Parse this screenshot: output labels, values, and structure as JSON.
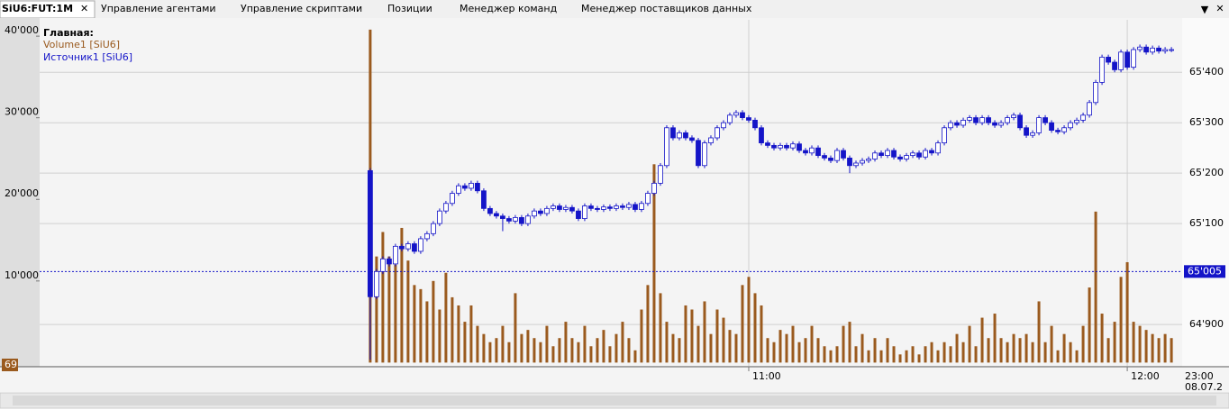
{
  "tabs": [
    {
      "label": "SiU6:FUT:1M"
    },
    {
      "label": "Управление агентами"
    },
    {
      "label": "Управление скриптами"
    },
    {
      "label": "Позиции"
    },
    {
      "label": "Менеджер команд"
    },
    {
      "label": "Менеджер поставщиков данных"
    }
  ],
  "chart_data": {
    "type": "candlestick",
    "legend_title": "Главная:",
    "x": [
      0,
      1,
      2,
      3,
      4,
      5,
      6,
      7,
      8,
      9,
      10,
      11,
      12,
      13,
      14,
      15,
      16,
      17,
      18,
      19,
      20,
      21,
      22,
      23,
      24,
      25,
      26,
      27,
      28,
      29,
      30,
      31,
      32,
      33,
      34,
      35,
      36,
      37,
      38,
      39,
      40,
      41,
      42,
      43,
      44,
      45,
      46,
      47,
      48,
      49,
      50,
      51,
      52,
      53,
      54,
      55,
      56,
      57,
      58,
      59,
      60,
      61,
      62,
      63,
      64,
      65,
      66,
      67,
      68,
      69,
      70,
      71,
      72,
      73,
      74,
      75,
      76,
      77,
      78,
      79,
      80,
      81,
      82,
      83,
      84,
      85,
      86,
      87,
      88,
      89,
      90,
      91,
      92,
      93,
      94,
      95,
      96,
      97,
      98,
      99,
      100,
      101,
      102,
      103,
      104,
      105,
      106,
      107,
      108,
      109,
      110,
      111,
      112,
      113,
      114,
      115,
      116,
      117,
      118,
      119,
      120,
      121,
      122,
      123,
      124,
      125,
      126,
      127
    ],
    "series": [
      {
        "name": "Volume1 [SiU6]",
        "type": "bar",
        "color": "#9a5a1e",
        "values": [
          40800,
          13000,
          16000,
          13000,
          12000,
          16500,
          12500,
          9500,
          9000,
          7500,
          10000,
          6500,
          11000,
          8000,
          7000,
          5000,
          7000,
          4500,
          3500,
          2500,
          3000,
          4500,
          2500,
          8500,
          3500,
          4000,
          3000,
          2500,
          4500,
          2000,
          3000,
          5000,
          3000,
          2500,
          4500,
          2000,
          3000,
          4000,
          2000,
          3500,
          5000,
          3000,
          1500,
          6500,
          9500,
          24300,
          8500,
          5000,
          3500,
          3000,
          7000,
          6500,
          4500,
          7500,
          3500,
          6500,
          5500,
          4000,
          3500,
          9500,
          10500,
          8500,
          7000,
          3000,
          2500,
          4000,
          3500,
          4500,
          2500,
          3000,
          4500,
          3000,
          2000,
          1500,
          2000,
          4500,
          5000,
          2000,
          3500,
          1500,
          3000,
          1500,
          3000,
          2000,
          1000,
          1500,
          2000,
          1000,
          2000,
          2500,
          1500,
          2500,
          2000,
          3500,
          2500,
          4500,
          2000,
          5500,
          3000,
          6000,
          3000,
          2500,
          3500,
          3000,
          3500,
          2500,
          7500,
          2500,
          4500,
          1500,
          3500,
          2500,
          1500,
          4500,
          9200,
          18500,
          6000,
          3000,
          5000,
          10500,
          12300,
          5000,
          4500,
          4000,
          3500,
          3000,
          3500,
          3000
        ]
      },
      {
        "name": "Источник1 [SiU6]",
        "type": "candlestick",
        "axis": "y2",
        "color": "#1414c8",
        "open": [
          65205,
          64955,
          65005,
          65030,
          65020,
          65055,
          65050,
          65060,
          65045,
          65070,
          65080,
          65100,
          65125,
          65140,
          65160,
          65175,
          65170,
          65180,
          65165,
          65130,
          65120,
          65115,
          65110,
          65105,
          65112,
          65100,
          65115,
          65125,
          65120,
          65130,
          65135,
          65128,
          65132,
          65125,
          65110,
          65135,
          65130,
          65128,
          65133,
          65130,
          65135,
          65132,
          65138,
          65128,
          65140,
          65160,
          65180,
          65215,
          65290,
          65270,
          65280,
          65270,
          65265,
          65215,
          65260,
          65270,
          65290,
          65300,
          65315,
          65320,
          65310,
          65305,
          65290,
          65260,
          65255,
          65250,
          65255,
          65250,
          65258,
          65245,
          65240,
          65250,
          65235,
          65230,
          65225,
          65245,
          65230,
          65215,
          65220,
          65225,
          65228,
          65240,
          65235,
          65245,
          65232,
          65228,
          65235,
          65240,
          65232,
          65245,
          65240,
          65260,
          65290,
          65300,
          65295,
          65305,
          65310,
          65300,
          65310,
          65300,
          65295,
          65300,
          65310,
          65315,
          65290,
          65275,
          65280,
          65310,
          65300,
          65285,
          65282,
          65290,
          65300,
          65305,
          65315,
          65340,
          65380,
          65430,
          65420,
          65405,
          65440,
          65410,
          65445,
          65450,
          65440,
          65448,
          65442,
          65445
        ],
        "high": [
          65210,
          65010,
          65035,
          65035,
          65060,
          65060,
          65065,
          65065,
          65075,
          65085,
          65105,
          65130,
          65145,
          65165,
          65180,
          65180,
          65185,
          65185,
          65170,
          65135,
          65125,
          65120,
          65115,
          65117,
          65117,
          65120,
          65130,
          65130,
          65135,
          65140,
          65140,
          65137,
          65137,
          65130,
          65140,
          65140,
          65135,
          65138,
          65138,
          65140,
          65140,
          65143,
          65143,
          65145,
          65165,
          65185,
          65220,
          65295,
          65295,
          65285,
          65285,
          65275,
          65270,
          65265,
          65275,
          65295,
          65305,
          65320,
          65325,
          65325,
          65315,
          65310,
          65295,
          65265,
          65260,
          65260,
          65260,
          65263,
          65263,
          65250,
          65255,
          65255,
          65240,
          65235,
          65250,
          65250,
          65235,
          65225,
          65230,
          65233,
          65245,
          65245,
          65250,
          65250,
          65237,
          65240,
          65245,
          65245,
          65250,
          65250,
          65265,
          65295,
          65305,
          65305,
          65310,
          65315,
          65315,
          65315,
          65315,
          65305,
          65305,
          65315,
          65320,
          65320,
          65295,
          65285,
          65315,
          65315,
          65305,
          65290,
          65295,
          65305,
          65310,
          65320,
          65345,
          65385,
          65435,
          65435,
          65425,
          65445,
          65445,
          65450,
          65455,
          65455,
          65453,
          65453,
          65450,
          65450
        ],
        "low": [
          64830,
          64950,
          65000,
          65015,
          65015,
          65045,
          65045,
          65040,
          65040,
          65065,
          65075,
          65095,
          65120,
          65135,
          65155,
          65165,
          65165,
          65160,
          65125,
          65115,
          65110,
          65085,
          65100,
          65100,
          65095,
          65095,
          65110,
          65115,
          65115,
          65125,
          65123,
          65123,
          65120,
          65105,
          65105,
          65125,
          65123,
          65123,
          65125,
          65125,
          65127,
          65127,
          65123,
          65123,
          65135,
          65155,
          65175,
          65210,
          65265,
          65265,
          65265,
          65260,
          65210,
          65210,
          65255,
          65265,
          65285,
          65295,
          65310,
          65305,
          65300,
          65285,
          65255,
          65250,
          65245,
          65245,
          65245,
          65245,
          65240,
          65235,
          65235,
          65230,
          65225,
          65220,
          65220,
          65225,
          65200,
          65210,
          65215,
          65220,
          65223,
          65230,
          65230,
          65227,
          65223,
          65223,
          65230,
          65227,
          65227,
          65235,
          65235,
          65255,
          65285,
          65290,
          65290,
          65300,
          65295,
          65295,
          65295,
          65290,
          65290,
          65295,
          65305,
          65285,
          65270,
          65270,
          65275,
          65295,
          65280,
          65277,
          65277,
          65285,
          65295,
          65300,
          65310,
          65335,
          65375,
          65415,
          65400,
          65400,
          65405,
          65405,
          65440,
          65435,
          65435,
          65437,
          65437,
          65440
        ],
        "close": [
          64955,
          65005,
          65030,
          65020,
          65055,
          65050,
          65060,
          65045,
          65070,
          65080,
          65100,
          65125,
          65140,
          65160,
          65175,
          65170,
          65180,
          65165,
          65130,
          65120,
          65115,
          65110,
          65105,
          65112,
          65100,
          65115,
          65125,
          65120,
          65130,
          65135,
          65128,
          65132,
          65125,
          65110,
          65135,
          65130,
          65128,
          65133,
          65130,
          65135,
          65132,
          65138,
          65128,
          65140,
          65160,
          65180,
          65215,
          65290,
          65270,
          65280,
          65270,
          65265,
          65215,
          65260,
          65270,
          65290,
          65300,
          65315,
          65320,
          65310,
          65305,
          65290,
          65260,
          65255,
          65250,
          65255,
          65250,
          65258,
          65245,
          65240,
          65250,
          65235,
          65230,
          65225,
          65245,
          65230,
          65215,
          65220,
          65225,
          65228,
          65240,
          65235,
          65245,
          65232,
          65228,
          65235,
          65240,
          65232,
          65245,
          65240,
          65260,
          65290,
          65300,
          65295,
          65305,
          65310,
          65300,
          65310,
          65300,
          65295,
          65300,
          65310,
          65315,
          65290,
          65275,
          65280,
          65310,
          65300,
          65285,
          65282,
          65290,
          65300,
          65305,
          65315,
          65340,
          65380,
          65430,
          65420,
          65405,
          65440,
          65410,
          65445,
          65450,
          65440,
          65448,
          65442,
          65445,
          65445
        ]
      }
    ],
    "xlim": [
      -52.4,
      128.7
    ],
    "xticks": [
      {
        "value": 60,
        "label": "11:00"
      },
      {
        "value": 120,
        "label": "12:00"
      }
    ],
    "ylim": [
      -400,
      42000
    ],
    "yticks": [
      {
        "value": 10000,
        "label": "10'000"
      },
      {
        "value": 20000,
        "label": "20'000"
      },
      {
        "value": 30000,
        "label": "30'000"
      },
      {
        "value": 40000,
        "label": "40'000"
      }
    ],
    "y2lim": [
      64818,
      65504
    ],
    "y2ticks": [
      {
        "value": 64900,
        "label": "64'900"
      },
      {
        "value": 65100,
        "label": "65'100"
      },
      {
        "value": 65200,
        "label": "65'200"
      },
      {
        "value": 65300,
        "label": "65'300"
      },
      {
        "value": 65400,
        "label": "65'400"
      }
    ],
    "grid": true,
    "price_marker": {
      "value": 65005,
      "label": "65'005"
    },
    "volume_marker_label": "69",
    "corner_labels": [
      "23:00",
      "08.07.2"
    ]
  }
}
